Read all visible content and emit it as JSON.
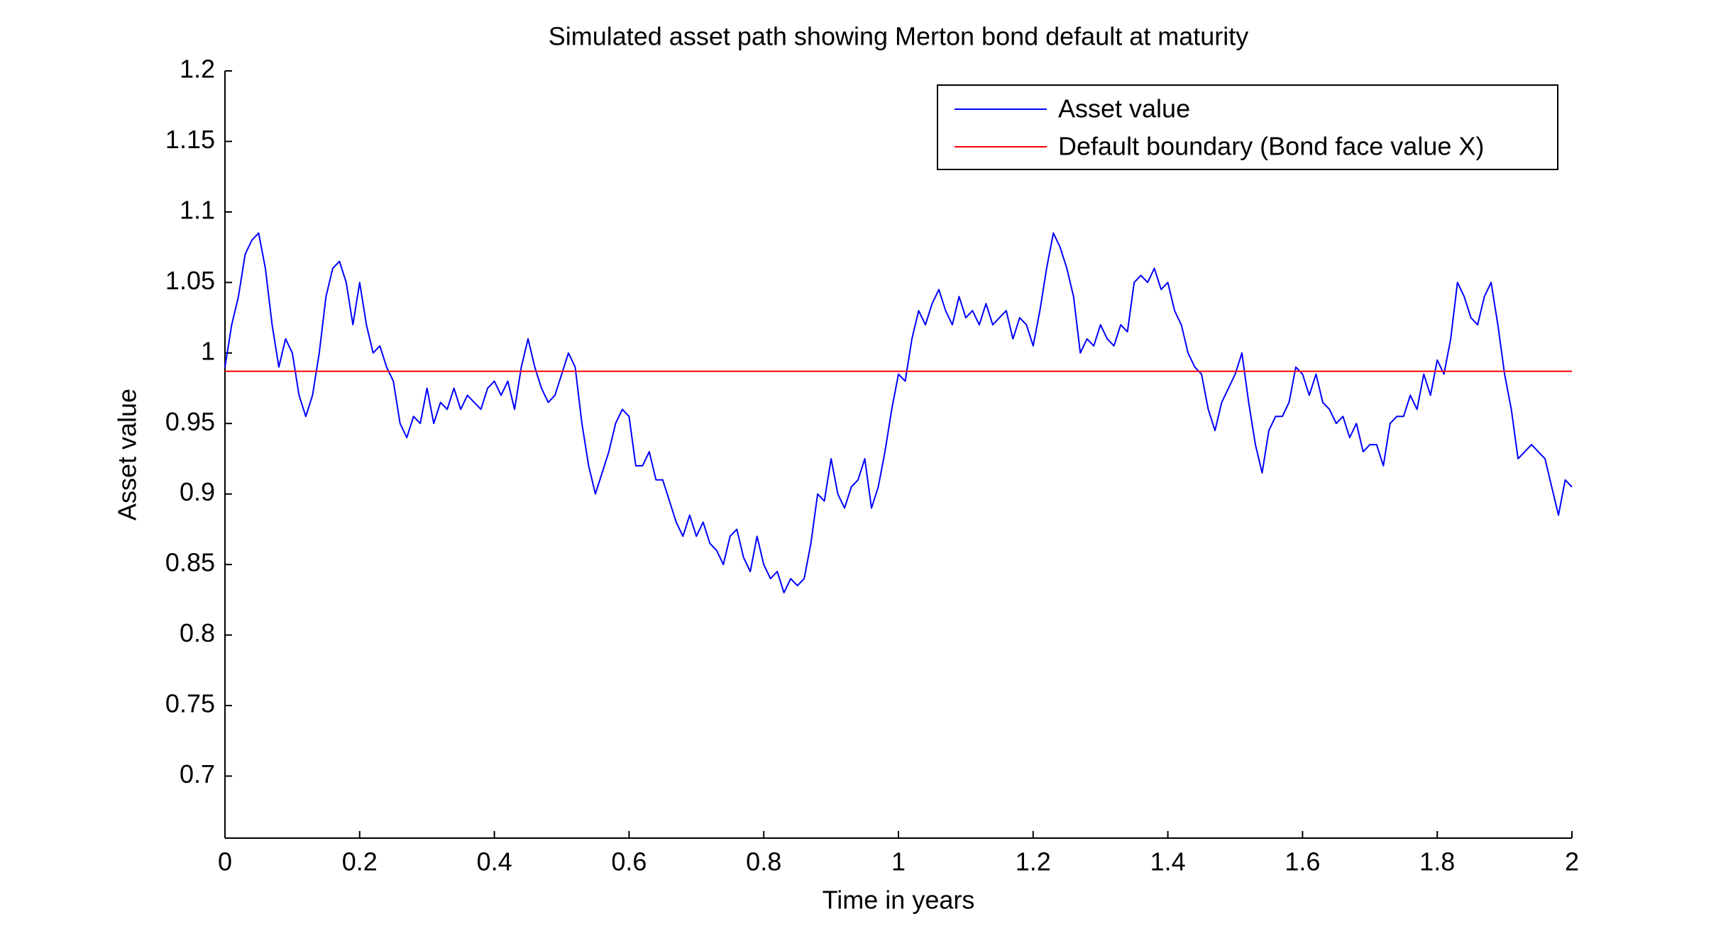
{
  "chart_data": {
    "type": "line",
    "title": "Simulated asset path showing Merton bond default at maturity",
    "xlabel": "Time in years",
    "ylabel": "Asset value",
    "xlim": [
      0,
      2
    ],
    "ylim": [
      0.656,
      1.2
    ],
    "xticks": [
      0,
      0.2,
      0.4,
      0.6,
      0.8,
      1,
      1.2,
      1.4,
      1.6,
      1.8,
      2
    ],
    "yticks": [
      0.7,
      0.75,
      0.8,
      0.85,
      0.9,
      0.95,
      1,
      1.05,
      1.1,
      1.15,
      1.2
    ],
    "legend": "northeast",
    "series": [
      {
        "name": "Asset value",
        "color": "#0000ff",
        "x": [
          0,
          0.01,
          0.02,
          0.03,
          0.04,
          0.05,
          0.06,
          0.07,
          0.08,
          0.09,
          0.1,
          0.11,
          0.12,
          0.13,
          0.14,
          0.15,
          0.16,
          0.17,
          0.18,
          0.19,
          0.2,
          0.21,
          0.22,
          0.23,
          0.24,
          0.25,
          0.26,
          0.27,
          0.28,
          0.29,
          0.3,
          0.31,
          0.32,
          0.33,
          0.34,
          0.35,
          0.36,
          0.37,
          0.38,
          0.39,
          0.4,
          0.41,
          0.42,
          0.43,
          0.44,
          0.45,
          0.46,
          0.47,
          0.48,
          0.49,
          0.5,
          0.51,
          0.52,
          0.53,
          0.54,
          0.55,
          0.56,
          0.57,
          0.58,
          0.59,
          0.6,
          0.61,
          0.62,
          0.63,
          0.64,
          0.65,
          0.66,
          0.67,
          0.68,
          0.69,
          0.7,
          0.71,
          0.72,
          0.73,
          0.74,
          0.75,
          0.76,
          0.77,
          0.78,
          0.79,
          0.8,
          0.81,
          0.82,
          0.83,
          0.84,
          0.85,
          0.86,
          0.87,
          0.88,
          0.89,
          0.9,
          0.91,
          0.92,
          0.93,
          0.94,
          0.95,
          0.96,
          0.97,
          0.98,
          0.99,
          1,
          1.01,
          1.02,
          1.03,
          1.04,
          1.05,
          1.06,
          1.07,
          1.08,
          1.09,
          1.1,
          1.11,
          1.12,
          1.13,
          1.14,
          1.15,
          1.16,
          1.17,
          1.18,
          1.19,
          1.2,
          1.21,
          1.22,
          1.23,
          1.24,
          1.25,
          1.26,
          1.27,
          1.28,
          1.29,
          1.3,
          1.31,
          1.32,
          1.33,
          1.34,
          1.35,
          1.36,
          1.37,
          1.38,
          1.39,
          1.4,
          1.41,
          1.42,
          1.43,
          1.44,
          1.45,
          1.46,
          1.47,
          1.48,
          1.49,
          1.5,
          1.51,
          1.52,
          1.53,
          1.54,
          1.55,
          1.56,
          1.57,
          1.58,
          1.59,
          1.6,
          1.61,
          1.62,
          1.63,
          1.64,
          1.65,
          1.66,
          1.67,
          1.68,
          1.69,
          1.7,
          1.71,
          1.72,
          1.73,
          1.74,
          1.75,
          1.76,
          1.77,
          1.78,
          1.79,
          1.8,
          1.81,
          1.82,
          1.83,
          1.84,
          1.85,
          1.86,
          1.87,
          1.88,
          1.89,
          1.9,
          1.91,
          1.92,
          1.93,
          1.94,
          1.95,
          1.96,
          1.97,
          1.98,
          1.99,
          2
        ],
        "values": [
          0.99,
          1.02,
          1.04,
          1.07,
          1.08,
          1.085,
          1.06,
          1.02,
          0.99,
          1.01,
          1.0,
          0.97,
          0.955,
          0.97,
          1.0,
          1.04,
          1.06,
          1.065,
          1.05,
          1.02,
          1.05,
          1.02,
          1.0,
          1.005,
          0.99,
          0.98,
          0.95,
          0.94,
          0.955,
          0.95,
          0.975,
          0.95,
          0.965,
          0.96,
          0.975,
          0.96,
          0.97,
          0.965,
          0.96,
          0.975,
          0.98,
          0.97,
          0.98,
          0.96,
          0.99,
          1.01,
          0.99,
          0.975,
          0.965,
          0.97,
          0.985,
          1.0,
          0.99,
          0.95,
          0.92,
          0.9,
          0.915,
          0.93,
          0.95,
          0.96,
          0.955,
          0.92,
          0.92,
          0.93,
          0.91,
          0.91,
          0.895,
          0.88,
          0.87,
          0.885,
          0.87,
          0.88,
          0.865,
          0.86,
          0.85,
          0.87,
          0.875,
          0.855,
          0.845,
          0.87,
          0.85,
          0.84,
          0.845,
          0.83,
          0.84,
          0.835,
          0.84,
          0.865,
          0.9,
          0.895,
          0.925,
          0.9,
          0.89,
          0.905,
          0.91,
          0.925,
          0.89,
          0.905,
          0.93,
          0.96,
          0.985,
          0.98,
          1.01,
          1.03,
          1.02,
          1.035,
          1.045,
          1.03,
          1.02,
          1.04,
          1.025,
          1.03,
          1.02,
          1.035,
          1.02,
          1.025,
          1.03,
          1.01,
          1.025,
          1.02,
          1.005,
          1.03,
          1.06,
          1.085,
          1.075,
          1.06,
          1.04,
          1.0,
          1.01,
          1.005,
          1.02,
          1.01,
          1.005,
          1.02,
          1.015,
          1.05,
          1.055,
          1.05,
          1.06,
          1.045,
          1.05,
          1.03,
          1.02,
          1.0,
          0.99,
          0.985,
          0.96,
          0.945,
          0.965,
          0.975,
          0.985,
          1.0,
          0.965,
          0.935,
          0.915,
          0.945,
          0.955,
          0.955,
          0.965,
          0.99,
          0.985,
          0.97,
          0.985,
          0.965,
          0.96,
          0.95,
          0.955,
          0.94,
          0.95,
          0.93,
          0.935,
          0.935,
          0.92,
          0.95,
          0.955,
          0.955,
          0.97,
          0.96,
          0.985,
          0.97,
          0.995,
          0.985,
          1.01,
          1.05,
          1.04,
          1.025,
          1.02,
          1.04,
          1.05,
          1.02,
          0.985,
          0.96,
          0.925,
          0.93,
          0.935,
          0.93,
          0.925,
          0.905,
          0.885,
          0.91,
          0.905
        ]
      },
      {
        "name": "Default boundary (Bond face value X)",
        "color": "#ff0000",
        "x": [
          0,
          2
        ],
        "values": [
          0.987,
          0.987
        ]
      }
    ]
  }
}
